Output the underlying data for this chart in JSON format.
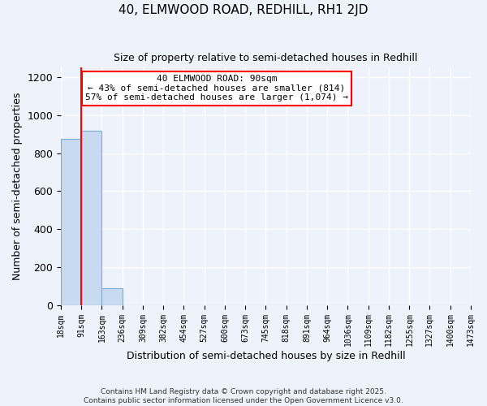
{
  "title": "40, ELMWOOD ROAD, REDHILL, RH1 2JD",
  "subtitle": "Size of property relative to semi-detached houses in Redhill",
  "xlabel": "Distribution of semi-detached houses by size in Redhill",
  "ylabel": "Number of semi-detached properties",
  "bin_edges": [
    18,
    91,
    163,
    236,
    309,
    382,
    454,
    527,
    600,
    673,
    745,
    818,
    891,
    964,
    1036,
    1109,
    1182,
    1255,
    1327,
    1400,
    1473
  ],
  "bin_labels": [
    "18sqm",
    "91sqm",
    "163sqm",
    "236sqm",
    "309sqm",
    "382sqm",
    "454sqm",
    "527sqm",
    "600sqm",
    "673sqm",
    "745sqm",
    "818sqm",
    "891sqm",
    "964sqm",
    "1036sqm",
    "1109sqm",
    "1182sqm",
    "1255sqm",
    "1327sqm",
    "1400sqm",
    "1473sqm"
  ],
  "bar_heights": [
    873,
    916,
    90,
    0,
    0,
    0,
    0,
    0,
    0,
    0,
    0,
    0,
    0,
    0,
    0,
    0,
    0,
    0,
    0,
    0
  ],
  "bar_color": "#c8daf0",
  "bar_edgecolor": "#7aadd4",
  "red_line_x": 91,
  "annotation_title": "40 ELMWOOD ROAD: 90sqm",
  "annotation_line1": "← 43% of semi-detached houses are smaller (814)",
  "annotation_line2": "57% of semi-detached houses are larger (1,074) →",
  "annotation_box_color": "white",
  "annotation_box_edgecolor": "red",
  "red_line_color": "red",
  "ylim": [
    0,
    1250
  ],
  "yticks": [
    0,
    200,
    400,
    600,
    800,
    1000,
    1200
  ],
  "background_color": "#eef2fa",
  "grid_color": "white",
  "footer1": "Contains HM Land Registry data © Crown copyright and database right 2025.",
  "footer2": "Contains public sector information licensed under the Open Government Licence v3.0."
}
